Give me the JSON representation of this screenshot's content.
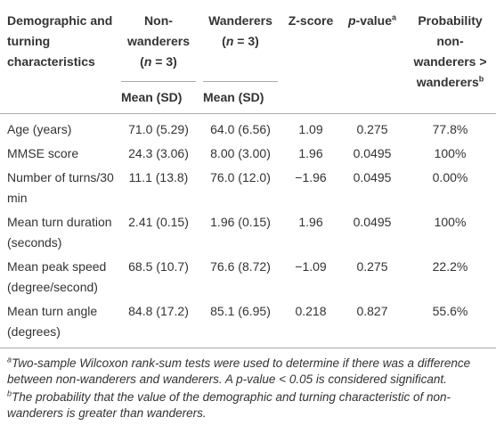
{
  "table": {
    "header": {
      "characteristic": "Demographic and turning characteristics",
      "non_wanderers": [
        "Non-wanderers",
        "(",
        "n",
        " = 3)"
      ],
      "wanderers": [
        "Wanderers",
        "(",
        "n",
        " = 3)"
      ],
      "z_score": "Z-score",
      "p_value": [
        "p",
        "-value",
        "a"
      ],
      "probability": [
        "Probability non-wanderers > wanderers",
        "b"
      ],
      "sub": [
        "Mean (SD)",
        "Mean (SD)"
      ]
    },
    "rows": [
      [
        "Age (years)",
        "71.0 (5.29)",
        "64.0 (6.56)",
        "1.09",
        "0.275",
        "77.8%"
      ],
      [
        "MMSE score",
        "24.3 (3.06)",
        "8.00 (3.00)",
        "1.96",
        "0.0495",
        "100%"
      ],
      [
        "Number of turns/30 min",
        "11.1 (13.8)",
        "76.0 (12.0)",
        "−1.96",
        "0.0495",
        "0.00%"
      ],
      [
        "Mean turn duration (seconds)",
        "2.41 (0.15)",
        "1.96 (0.15)",
        "1.96",
        "0.0495",
        "100%"
      ],
      [
        "Mean peak speed (degree/second)",
        "68.5 (10.7)",
        "76.6 (8.72)",
        "−1.09",
        "0.275",
        "22.2%"
      ],
      [
        "Mean turn angle (degrees)",
        "84.8 (17.2)",
        "85.1 (6.95)",
        "0.218",
        "0.827",
        "55.6%"
      ]
    ],
    "footnotes": [
      {
        "mark": "a",
        "text": "Two-sample Wilcoxon rank-sum tests were used to determine if there was a difference between non-wanderers and wanderers. A p-value < 0.05 is considered significant."
      },
      {
        "mark": "b",
        "text": "The probability that the value of the demographic and turning characteristic of non-wanderers is greater than wanderers."
      }
    ]
  }
}
